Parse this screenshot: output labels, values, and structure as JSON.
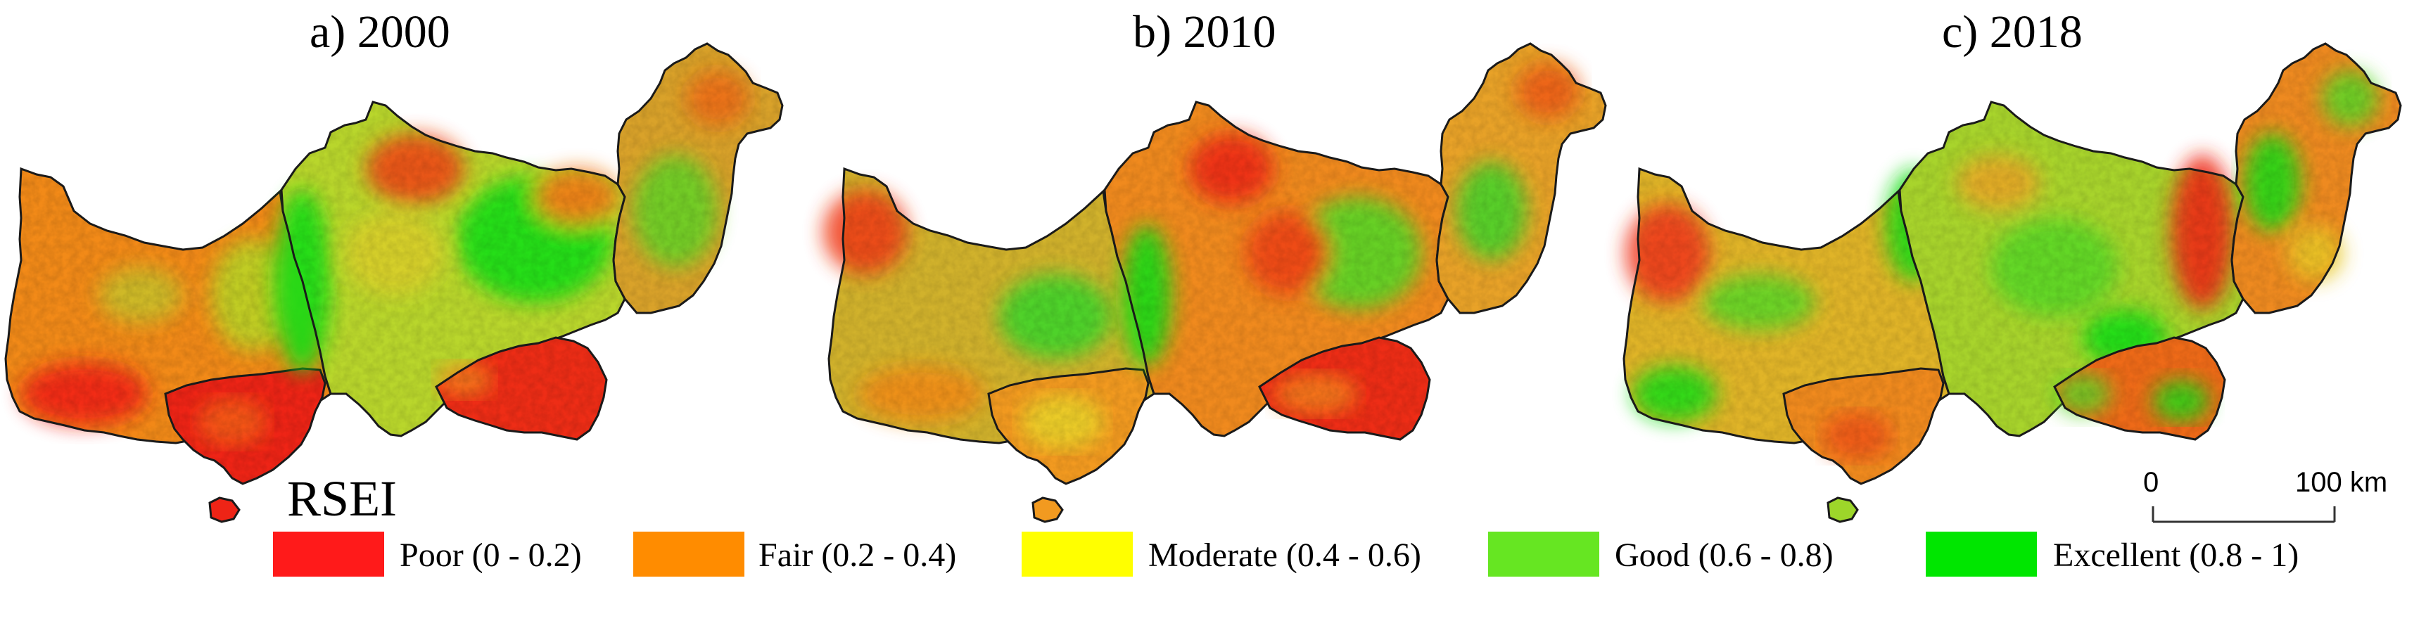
{
  "panels": [
    {
      "title": "a) 2000"
    },
    {
      "title": "b) 2010"
    },
    {
      "title": "c) 2018"
    }
  ],
  "rsei_label": "RSEI",
  "scale_bar": {
    "start": "0",
    "end": "100 km"
  },
  "legend": [
    {
      "label": "Poor (0 - 0.2)",
      "color": "#ff1a1a"
    },
    {
      "label": "Fair (0.2 - 0.4)",
      "color": "#ff8c00"
    },
    {
      "label": "Moderate (0.4 - 0.6)",
      "color": "#ffff00"
    },
    {
      "label": "Good (0.6 - 0.8)",
      "color": "#66e622"
    },
    {
      "label": "Excellent (0.8 - 1)",
      "color": "#00e600"
    }
  ]
}
